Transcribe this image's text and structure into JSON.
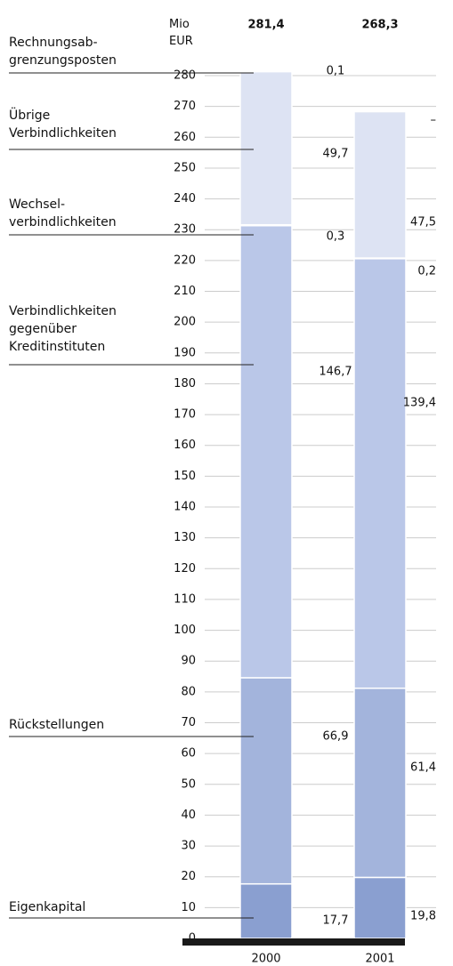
{
  "chart_data": {
    "type": "stacked-bar",
    "y_label": "Mio\nEUR",
    "categories": [
      "2000",
      "2001"
    ],
    "totals": [
      281.4,
      268.3
    ],
    "total_labels": [
      "281,4",
      "268,3"
    ],
    "ylim": [
      0,
      285
    ],
    "yticks": [
      0,
      10,
      20,
      30,
      40,
      50,
      60,
      70,
      80,
      90,
      100,
      110,
      120,
      130,
      140,
      150,
      160,
      170,
      180,
      190,
      200,
      210,
      220,
      230,
      240,
      250,
      260,
      270,
      280
    ],
    "grid": true,
    "series": [
      {
        "name": "Eigenkapital",
        "color": "#8a9fd0",
        "values": [
          17.7,
          19.8
        ],
        "value_labels": [
          "17,7",
          "19,8"
        ]
      },
      {
        "name": "Rückstellungen",
        "color": "#a3b4dc",
        "values": [
          66.9,
          61.4
        ],
        "value_labels": [
          "66,9",
          "61,4"
        ]
      },
      {
        "name": "Verbindlichkeiten\ngegenüber\nKreditinstituten",
        "color": "#bac7e8",
        "values": [
          146.7,
          139.4
        ],
        "value_labels": [
          "146,7",
          "139,4"
        ]
      },
      {
        "name": "Wechsel-\nverbindlichkeiten",
        "color": "#cbd4ee",
        "values": [
          0.3,
          0.2
        ],
        "value_labels": [
          "0,3",
          "0,2"
        ]
      },
      {
        "name": "Übrige\nVerbindlichkeiten",
        "color": "#dde3f3",
        "values": [
          49.7,
          47.5
        ],
        "value_labels": [
          "49,7",
          "47,5"
        ]
      },
      {
        "name": "Rechnungsab-\ngrenzungsposten",
        "color": "#e8ecf7",
        "values": [
          0.1,
          null
        ],
        "value_labels": [
          "0,1",
          "–"
        ]
      }
    ]
  }
}
